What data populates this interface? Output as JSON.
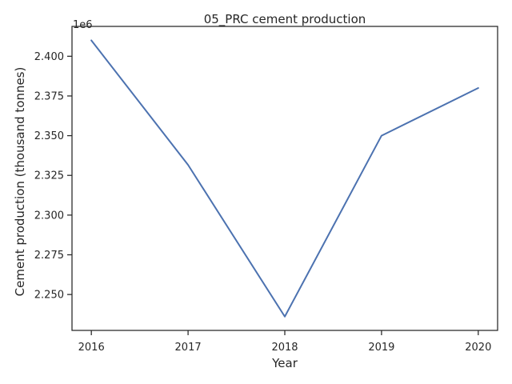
{
  "chart_data": {
    "type": "line",
    "title": "05_PRC cement production",
    "xlabel": "Year",
    "ylabel": "Cement production (thousand tonnes)",
    "y_offset_label": "1e6",
    "x": [
      2016,
      2017,
      2018,
      2019,
      2020
    ],
    "x_tick_labels": [
      "2016",
      "2017",
      "2018",
      "2019",
      "2020"
    ],
    "series": [
      {
        "values": [
          2410000,
          2331600,
          2236100,
          2350000,
          2380000
        ],
        "color": "#4c72b0"
      }
    ],
    "y_ticks": [
      2250000,
      2275000,
      2300000,
      2325000,
      2350000,
      2375000,
      2400000
    ],
    "y_tick_labels": [
      "2.250",
      "2.275",
      "2.300",
      "2.325",
      "2.350",
      "2.375",
      "2.400"
    ],
    "xlim": [
      2015.8,
      2020.2
    ],
    "ylim": [
      2227400,
      2418800
    ],
    "grid": false,
    "axis_color": "#262626"
  }
}
